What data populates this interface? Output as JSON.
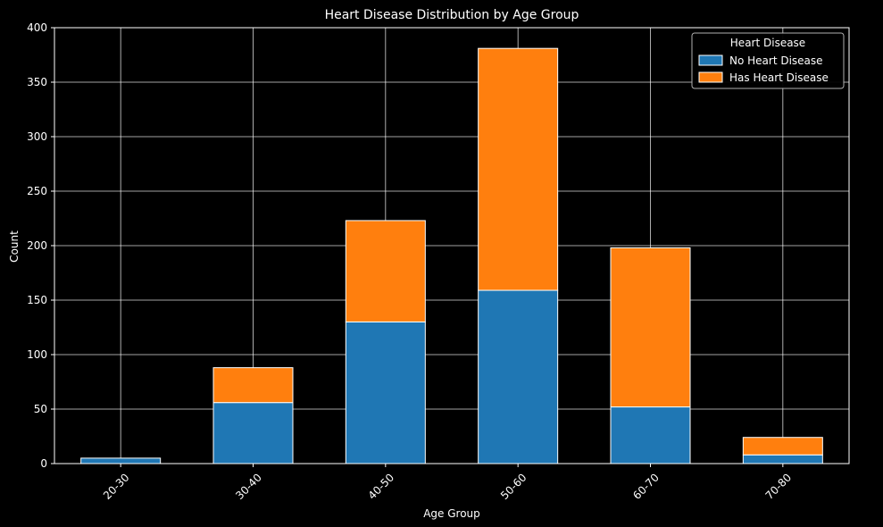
{
  "chart_data": {
    "type": "bar",
    "stacked": true,
    "title": "Heart Disease Distribution by Age Group",
    "xlabel": "Age Group",
    "ylabel": "Count",
    "ylim": [
      0,
      400
    ],
    "yticks": [
      "0",
      "50",
      "100",
      "150",
      "200",
      "250",
      "300",
      "350",
      "400"
    ],
    "categories": [
      "20-30",
      "30-40",
      "40-50",
      "50-60",
      "60-70",
      "70-80"
    ],
    "series": [
      {
        "name": "No Heart Disease",
        "color": "#1f77b4",
        "values": [
          5,
          56,
          130,
          159,
          52,
          8
        ]
      },
      {
        "name": "Has Heart Disease",
        "color": "#ff7f0e",
        "values": [
          0,
          32,
          93,
          222,
          146,
          16
        ]
      }
    ],
    "legend": {
      "title": "Heart Disease",
      "placement": "top-right"
    },
    "grid": true,
    "background": "#000000",
    "foreground": "#ffffff"
  }
}
